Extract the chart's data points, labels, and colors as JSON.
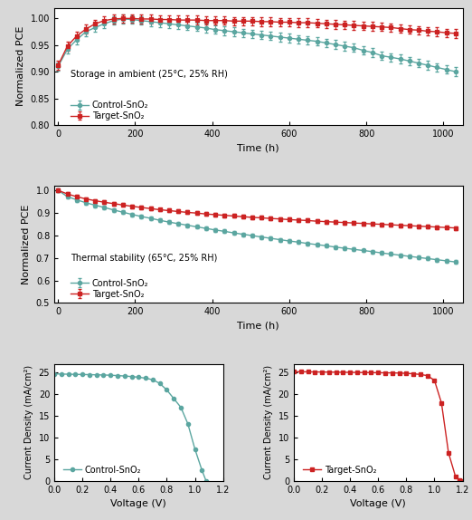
{
  "ambient_time": [
    0,
    24,
    48,
    72,
    96,
    120,
    144,
    168,
    192,
    216,
    240,
    264,
    288,
    312,
    336,
    360,
    384,
    408,
    432,
    456,
    480,
    504,
    528,
    552,
    576,
    600,
    624,
    648,
    672,
    696,
    720,
    744,
    768,
    792,
    816,
    840,
    864,
    888,
    912,
    936,
    960,
    984,
    1008,
    1032
  ],
  "ambient_control": [
    0.91,
    0.942,
    0.96,
    0.975,
    0.983,
    0.99,
    0.996,
    0.999,
    0.998,
    0.996,
    0.994,
    0.992,
    0.99,
    0.988,
    0.986,
    0.984,
    0.982,
    0.979,
    0.977,
    0.975,
    0.973,
    0.971,
    0.969,
    0.967,
    0.965,
    0.963,
    0.961,
    0.959,
    0.957,
    0.954,
    0.951,
    0.948,
    0.945,
    0.94,
    0.936,
    0.93,
    0.927,
    0.924,
    0.92,
    0.916,
    0.912,
    0.908,
    0.904,
    0.9
  ],
  "ambient_target": [
    0.912,
    0.948,
    0.967,
    0.98,
    0.99,
    0.996,
    0.999,
    1.0,
    1.0,
    0.999,
    0.999,
    0.998,
    0.998,
    0.997,
    0.997,
    0.997,
    0.996,
    0.996,
    0.996,
    0.995,
    0.995,
    0.995,
    0.994,
    0.994,
    0.993,
    0.993,
    0.992,
    0.992,
    0.991,
    0.99,
    0.989,
    0.988,
    0.987,
    0.986,
    0.985,
    0.984,
    0.983,
    0.981,
    0.979,
    0.978,
    0.976,
    0.975,
    0.973,
    0.972
  ],
  "thermal_time": [
    0,
    24,
    48,
    72,
    96,
    120,
    144,
    168,
    192,
    216,
    240,
    264,
    288,
    312,
    336,
    360,
    384,
    408,
    432,
    456,
    480,
    504,
    528,
    552,
    576,
    600,
    624,
    648,
    672,
    696,
    720,
    744,
    768,
    792,
    816,
    840,
    864,
    888,
    912,
    936,
    960,
    984,
    1008,
    1032
  ],
  "thermal_control": [
    1.0,
    0.972,
    0.958,
    0.945,
    0.934,
    0.924,
    0.913,
    0.903,
    0.893,
    0.884,
    0.876,
    0.867,
    0.859,
    0.852,
    0.845,
    0.838,
    0.831,
    0.824,
    0.818,
    0.811,
    0.805,
    0.799,
    0.793,
    0.787,
    0.781,
    0.775,
    0.77,
    0.764,
    0.759,
    0.754,
    0.748,
    0.743,
    0.738,
    0.733,
    0.728,
    0.722,
    0.717,
    0.712,
    0.707,
    0.702,
    0.697,
    0.692,
    0.687,
    0.682
  ],
  "thermal_target": [
    1.0,
    0.984,
    0.972,
    0.962,
    0.954,
    0.947,
    0.941,
    0.935,
    0.929,
    0.924,
    0.919,
    0.914,
    0.91,
    0.906,
    0.902,
    0.899,
    0.895,
    0.892,
    0.889,
    0.886,
    0.883,
    0.88,
    0.878,
    0.875,
    0.873,
    0.87,
    0.868,
    0.866,
    0.863,
    0.861,
    0.859,
    0.857,
    0.855,
    0.853,
    0.851,
    0.849,
    0.847,
    0.845,
    0.843,
    0.841,
    0.839,
    0.837,
    0.835,
    0.833
  ],
  "jv_control_v": [
    0.0,
    0.05,
    0.1,
    0.15,
    0.2,
    0.25,
    0.3,
    0.35,
    0.4,
    0.45,
    0.5,
    0.55,
    0.6,
    0.65,
    0.7,
    0.75,
    0.8,
    0.85,
    0.9,
    0.95,
    1.0,
    1.05,
    1.08
  ],
  "jv_control_j": [
    24.7,
    24.65,
    24.62,
    24.58,
    24.55,
    24.52,
    24.48,
    24.44,
    24.38,
    24.3,
    24.2,
    24.08,
    23.92,
    23.7,
    23.35,
    22.5,
    21.0,
    19.0,
    17.0,
    13.2,
    7.4,
    2.5,
    0.0
  ],
  "jv_target_v": [
    0.0,
    0.05,
    0.1,
    0.15,
    0.2,
    0.25,
    0.3,
    0.35,
    0.4,
    0.45,
    0.5,
    0.55,
    0.6,
    0.65,
    0.7,
    0.75,
    0.8,
    0.85,
    0.9,
    0.95,
    1.0,
    1.05,
    1.1,
    1.15,
    1.18,
    1.195
  ],
  "jv_target_j": [
    25.2,
    25.18,
    25.16,
    25.14,
    25.12,
    25.1,
    25.08,
    25.06,
    25.04,
    25.02,
    25.0,
    24.98,
    24.96,
    24.94,
    24.92,
    24.88,
    24.82,
    24.72,
    24.55,
    24.3,
    23.2,
    18.0,
    6.5,
    1.0,
    0.2,
    0.0
  ],
  "control_color": "#5ba6a0",
  "target_color": "#cc2222",
  "ambient_label": "Storage in ambient (25°C, 25% RH)",
  "thermal_label": "Thermal stability (65°C, 25% RH)",
  "legend_control": "Control-SnO₂",
  "legend_target": "Target-SnO₂",
  "ambient_ylim": [
    0.8,
    1.02
  ],
  "thermal_ylim": [
    0.5,
    1.02
  ],
  "jv_ylim": [
    0,
    27
  ],
  "jv_xlim": [
    0.0,
    1.2
  ],
  "jv_yticks": [
    0,
    5,
    10,
    15,
    20,
    25
  ],
  "ambient_yticks": [
    0.8,
    0.85,
    0.9,
    0.95,
    1.0
  ],
  "thermal_yticks": [
    0.5,
    0.6,
    0.7,
    0.8,
    0.9,
    1.0
  ],
  "time_xticks": [
    0,
    200,
    400,
    600,
    800,
    1000
  ],
  "jv_xticks": [
    0.0,
    0.2,
    0.4,
    0.6,
    0.8,
    1.0,
    1.2
  ],
  "ylabel_stability": "Normalized PCE",
  "ylabel_jv": "Current Density (mA/cm²)",
  "xlabel_time": "Time (h)",
  "xlabel_voltage": "Voltage (V)",
  "bg_color": "#d8d8d8",
  "err": 0.008
}
